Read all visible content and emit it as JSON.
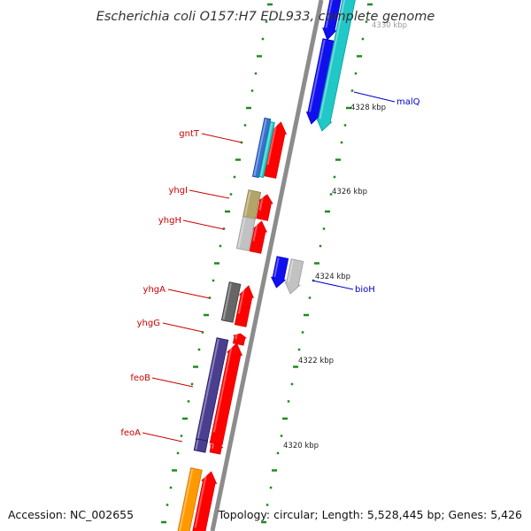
{
  "title": "Escherichia coli O157:H7 EDL933, complete genome",
  "footer": {
    "accession": "Accession: NC_002655",
    "summary": "Topology: circular; Length: 5,528,445 bp; Genes: 5,426"
  },
  "colors": {
    "backbone": "#8c8c8c",
    "tick": "#1f8a1f",
    "forward_label": "#cc0000",
    "reverse_label": "#0000cc"
  },
  "kbp_labels": [
    {
      "id": "4330",
      "text": "4330 kbp"
    },
    {
      "id": "4328",
      "text": "4328 kbp"
    },
    {
      "id": "4326",
      "text": "4326 kbp"
    },
    {
      "id": "4324",
      "text": "4324 kbp"
    },
    {
      "id": "4322",
      "text": "4322 kbp"
    },
    {
      "id": "4320",
      "text": "4320 kbp"
    }
  ],
  "gene_labels": [
    {
      "id": "gntT",
      "text": "gntT",
      "strand": "forward"
    },
    {
      "id": "yhgI",
      "text": "yhgI",
      "strand": "forward"
    },
    {
      "id": "yhgH",
      "text": "yhgH",
      "strand": "forward"
    },
    {
      "id": "yhgA",
      "text": "yhgA",
      "strand": "forward"
    },
    {
      "id": "yhgG",
      "text": "yhgG",
      "strand": "forward"
    },
    {
      "id": "feoB",
      "text": "feoB",
      "strand": "forward"
    },
    {
      "id": "feoA",
      "text": "feoA",
      "strand": "forward"
    },
    {
      "id": "malQ",
      "text": "malQ",
      "strand": "reverse"
    },
    {
      "id": "bioH",
      "text": "bioH",
      "strand": "reverse"
    }
  ]
}
